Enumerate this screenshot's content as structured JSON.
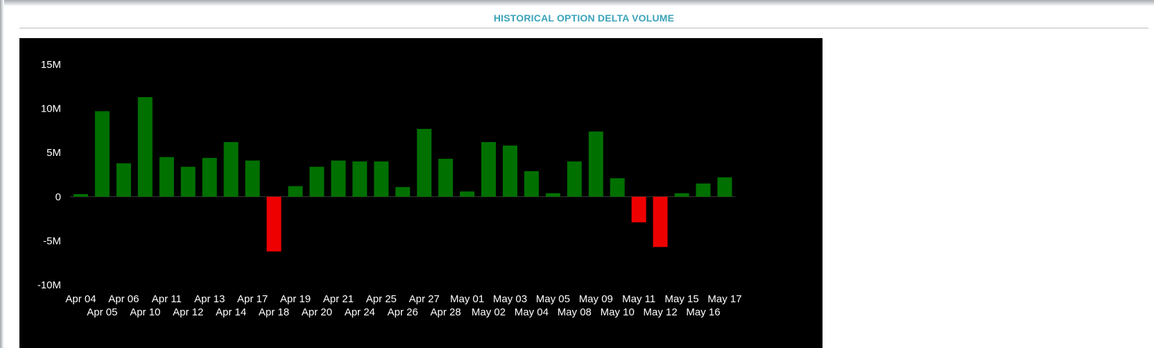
{
  "panel": {
    "title": "HISTORICAL OPTION DELTA VOLUME"
  },
  "colors": {
    "positive": "#007000",
    "negative": "#ee0000",
    "background": "#000000",
    "title": "#3aa3b9"
  },
  "chart_data": {
    "type": "bar",
    "title": "",
    "xlabel": "",
    "ylabel": "",
    "ylim": [
      -10000000,
      15000000
    ],
    "yticks": [
      {
        "value": 15000000,
        "label": "15M"
      },
      {
        "value": 10000000,
        "label": "10M"
      },
      {
        "value": 5000000,
        "label": "5M"
      },
      {
        "value": 0,
        "label": "0"
      },
      {
        "value": -5000000,
        "label": "-5M"
      },
      {
        "value": -10000000,
        "label": "-10M"
      }
    ],
    "categories": [
      "Apr 04",
      "Apr 05",
      "Apr 06",
      "Apr 10",
      "Apr 11",
      "Apr 12",
      "Apr 13",
      "Apr 14",
      "Apr 17",
      "Apr 18",
      "Apr 19",
      "Apr 20",
      "Apr 21",
      "Apr 24",
      "Apr 25",
      "Apr 26",
      "Apr 27",
      "Apr 28",
      "May 01",
      "May 02",
      "May 03",
      "May 04",
      "May 05",
      "May 08",
      "May 09",
      "May 10",
      "May 11",
      "May 12",
      "May 15",
      "May 16",
      "May 17"
    ],
    "values": [
      300000,
      9700000,
      3800000,
      11300000,
      4500000,
      3400000,
      4400000,
      6200000,
      4100000,
      -6200000,
      1200000,
      3400000,
      4100000,
      4000000,
      4000000,
      1100000,
      7700000,
      4300000,
      600000,
      6200000,
      5800000,
      2900000,
      400000,
      4000000,
      7400000,
      2100000,
      -2900000,
      -5700000,
      400000,
      1500000,
      2200000
    ],
    "grid": false,
    "legend": "none"
  }
}
